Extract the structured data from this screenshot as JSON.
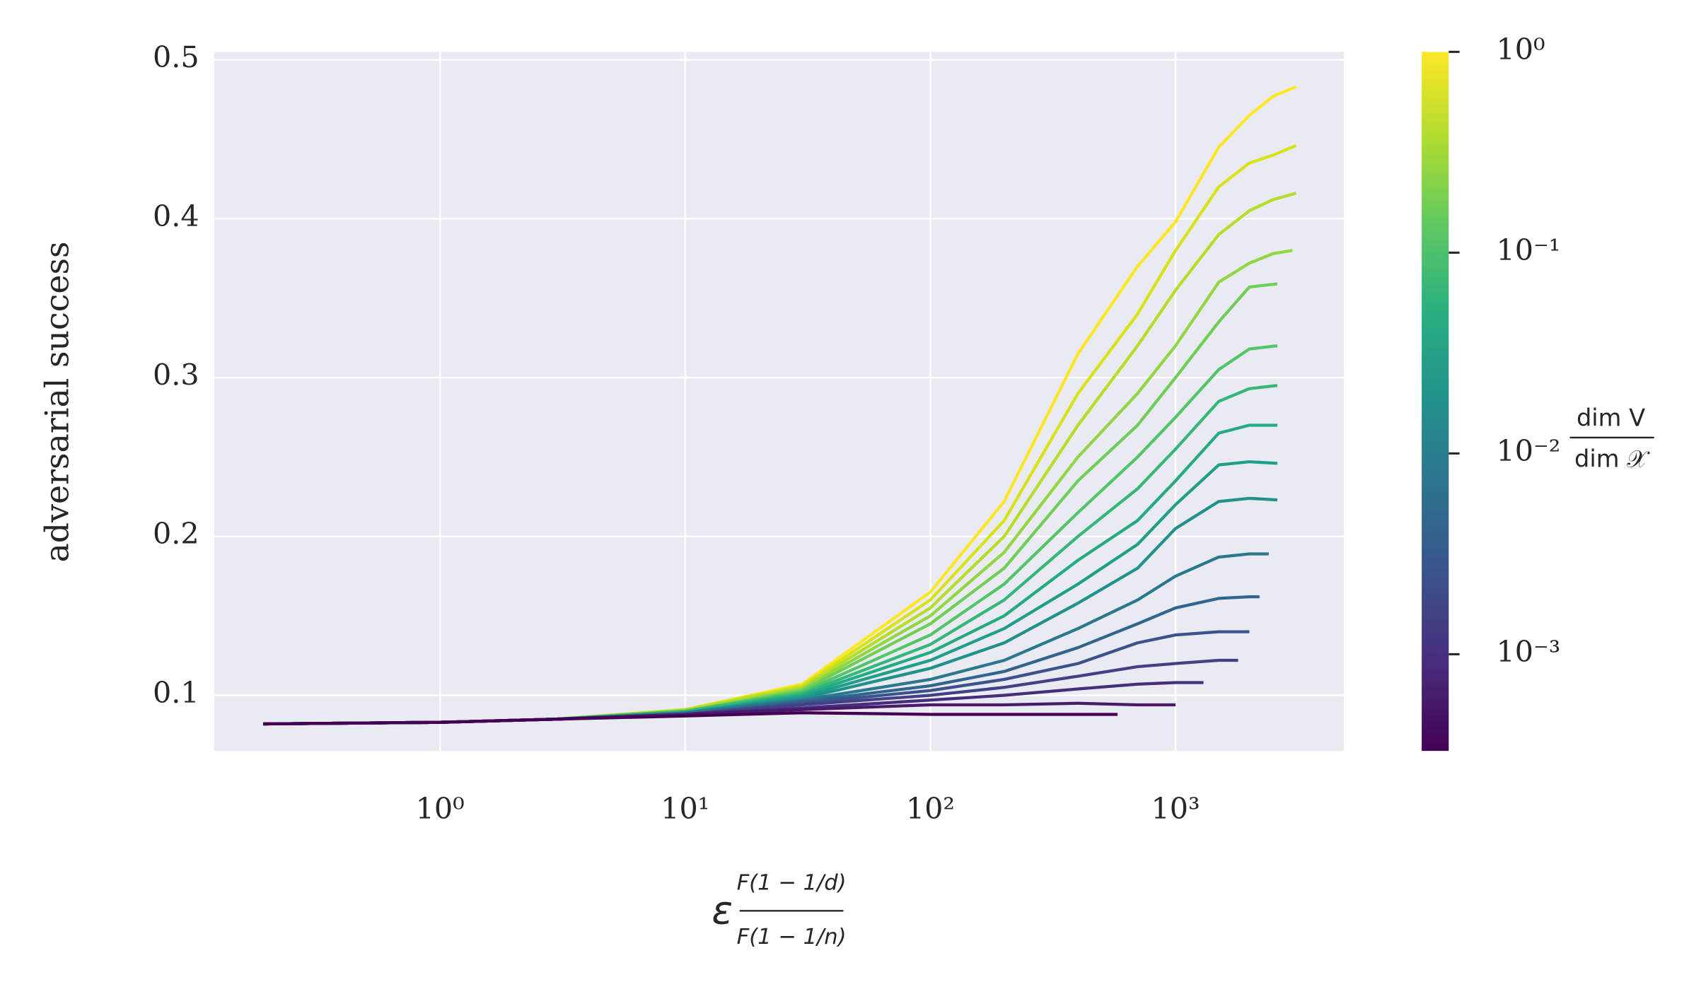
{
  "chart_data": {
    "type": "line",
    "y_label": "adversarial success",
    "x_label": {
      "symbol": "ε",
      "numerator": "F(1 − 1/d)",
      "denominator": "F(1 − 1/n)"
    },
    "x_scale": "log",
    "grid": true,
    "xlim": [
      0.12,
      4860
    ],
    "ylim": [
      0.065,
      0.505
    ],
    "xticks": [
      {
        "value": 1,
        "label": "10⁰"
      },
      {
        "value": 10,
        "label": "10¹"
      },
      {
        "value": 100,
        "label": "10²"
      },
      {
        "value": 1000,
        "label": "10³"
      }
    ],
    "yticks": [
      0.1,
      0.2,
      0.3,
      0.4,
      0.5
    ],
    "colorbar": {
      "scale": "log",
      "label": {
        "numerator": "dim V",
        "denominator": "dim 𝒳"
      },
      "lim": [
        0.00033,
        1
      ],
      "ticks": [
        {
          "value": 0.001,
          "label": "10⁻³"
        },
        {
          "value": 0.01,
          "label": "10⁻²"
        },
        {
          "value": 0.1,
          "label": "10⁻¹"
        },
        {
          "value": 1,
          "label": "10⁰"
        }
      ]
    },
    "series": [
      {
        "color": "#fde725",
        "x": [
          0.19,
          1,
          3,
          10,
          30,
          100,
          200,
          400,
          700,
          1000,
          1500,
          2000,
          2500,
          3100
        ],
        "values": [
          0.082,
          0.083,
          0.085,
          0.091,
          0.107,
          0.165,
          0.222,
          0.315,
          0.37,
          0.398,
          0.445,
          0.465,
          0.477,
          0.483
        ]
      },
      {
        "color": "#d8e219",
        "x": [
          0.19,
          1,
          3,
          10,
          30,
          100,
          200,
          400,
          700,
          1000,
          1500,
          2000,
          2500,
          3100
        ],
        "values": [
          0.082,
          0.083,
          0.085,
          0.091,
          0.106,
          0.16,
          0.21,
          0.29,
          0.34,
          0.38,
          0.42,
          0.435,
          0.44,
          0.446
        ]
      },
      {
        "color": "#b5de2b",
        "x": [
          0.19,
          1,
          3,
          10,
          30,
          100,
          200,
          400,
          700,
          1000,
          1500,
          2000,
          2500,
          3100
        ],
        "values": [
          0.082,
          0.083,
          0.085,
          0.091,
          0.105,
          0.155,
          0.2,
          0.27,
          0.32,
          0.355,
          0.39,
          0.405,
          0.412,
          0.416
        ]
      },
      {
        "color": "#90d743",
        "x": [
          0.19,
          1,
          3,
          10,
          30,
          100,
          200,
          400,
          700,
          1000,
          1500,
          2000,
          2500,
          3000
        ],
        "values": [
          0.082,
          0.083,
          0.085,
          0.09,
          0.104,
          0.15,
          0.19,
          0.25,
          0.29,
          0.32,
          0.36,
          0.372,
          0.378,
          0.38
        ]
      },
      {
        "color": "#6ece58",
        "x": [
          0.19,
          1,
          3,
          10,
          30,
          100,
          200,
          400,
          700,
          1000,
          1500,
          2000,
          2600
        ],
        "values": [
          0.082,
          0.083,
          0.085,
          0.09,
          0.103,
          0.145,
          0.18,
          0.235,
          0.27,
          0.3,
          0.335,
          0.357,
          0.359
        ]
      },
      {
        "color": "#52c569",
        "x": [
          0.19,
          1,
          3,
          10,
          30,
          100,
          200,
          400,
          700,
          1000,
          1500,
          2000,
          2600
        ],
        "values": [
          0.082,
          0.083,
          0.085,
          0.09,
          0.102,
          0.138,
          0.17,
          0.215,
          0.25,
          0.275,
          0.305,
          0.318,
          0.32
        ]
      },
      {
        "color": "#35b779",
        "x": [
          0.19,
          1,
          3,
          10,
          30,
          100,
          200,
          400,
          700,
          1000,
          1500,
          2000,
          2600
        ],
        "values": [
          0.082,
          0.083,
          0.085,
          0.09,
          0.101,
          0.132,
          0.16,
          0.2,
          0.23,
          0.255,
          0.285,
          0.293,
          0.295
        ]
      },
      {
        "color": "#25ab82",
        "x": [
          0.19,
          1,
          3,
          10,
          30,
          100,
          200,
          400,
          700,
          1000,
          1500,
          2000,
          2600
        ],
        "values": [
          0.082,
          0.083,
          0.085,
          0.089,
          0.1,
          0.127,
          0.15,
          0.185,
          0.21,
          0.235,
          0.265,
          0.27,
          0.27
        ]
      },
      {
        "color": "#1f9e89",
        "x": [
          0.19,
          1,
          3,
          10,
          30,
          100,
          200,
          400,
          700,
          1000,
          1500,
          2000,
          2600
        ],
        "values": [
          0.082,
          0.083,
          0.085,
          0.089,
          0.099,
          0.122,
          0.142,
          0.17,
          0.195,
          0.22,
          0.245,
          0.247,
          0.246
        ]
      },
      {
        "color": "#21918c",
        "x": [
          0.19,
          1,
          3,
          10,
          30,
          100,
          200,
          400,
          700,
          1000,
          1500,
          2000,
          2600
        ],
        "values": [
          0.082,
          0.083,
          0.085,
          0.089,
          0.098,
          0.117,
          0.133,
          0.158,
          0.18,
          0.205,
          0.222,
          0.224,
          0.223
        ]
      },
      {
        "color": "#2a788e",
        "x": [
          0.19,
          1,
          3,
          10,
          30,
          100,
          200,
          400,
          700,
          1000,
          1500,
          2000,
          2400
        ],
        "values": [
          0.082,
          0.083,
          0.085,
          0.089,
          0.097,
          0.11,
          0.122,
          0.142,
          0.16,
          0.175,
          0.187,
          0.189,
          0.189
        ]
      },
      {
        "color": "#32658e",
        "x": [
          0.19,
          1,
          3,
          10,
          30,
          100,
          200,
          400,
          700,
          1000,
          1500,
          2000,
          2200
        ],
        "values": [
          0.082,
          0.083,
          0.085,
          0.088,
          0.096,
          0.106,
          0.115,
          0.13,
          0.145,
          0.155,
          0.161,
          0.162,
          0.162
        ]
      },
      {
        "color": "#3b528b",
        "x": [
          0.19,
          1,
          3,
          10,
          30,
          100,
          200,
          400,
          700,
          1000,
          1500,
          2000
        ],
        "values": [
          0.082,
          0.083,
          0.085,
          0.088,
          0.095,
          0.103,
          0.11,
          0.12,
          0.133,
          0.138,
          0.14,
          0.14
        ]
      },
      {
        "color": "#424086",
        "x": [
          0.19,
          1,
          3,
          10,
          30,
          100,
          200,
          400,
          700,
          1000,
          1500,
          1800
        ],
        "values": [
          0.082,
          0.083,
          0.085,
          0.088,
          0.094,
          0.1,
          0.105,
          0.112,
          0.118,
          0.12,
          0.122,
          0.122
        ]
      },
      {
        "color": "#472d7b",
        "x": [
          0.19,
          1,
          3,
          10,
          30,
          100,
          200,
          400,
          700,
          1000,
          1300
        ],
        "values": [
          0.082,
          0.083,
          0.085,
          0.088,
          0.092,
          0.097,
          0.1,
          0.104,
          0.107,
          0.108,
          0.108
        ]
      },
      {
        "color": "#481a6c",
        "x": [
          0.19,
          1,
          3,
          10,
          30,
          100,
          200,
          400,
          700,
          1000
        ],
        "values": [
          0.082,
          0.083,
          0.085,
          0.088,
          0.091,
          0.094,
          0.094,
          0.095,
          0.094,
          0.094
        ]
      },
      {
        "color": "#440154",
        "x": [
          0.19,
          1,
          3,
          10,
          30,
          100,
          200,
          400,
          580
        ],
        "values": [
          0.082,
          0.083,
          0.085,
          0.087,
          0.089,
          0.088,
          0.088,
          0.088,
          0.088
        ]
      }
    ]
  }
}
